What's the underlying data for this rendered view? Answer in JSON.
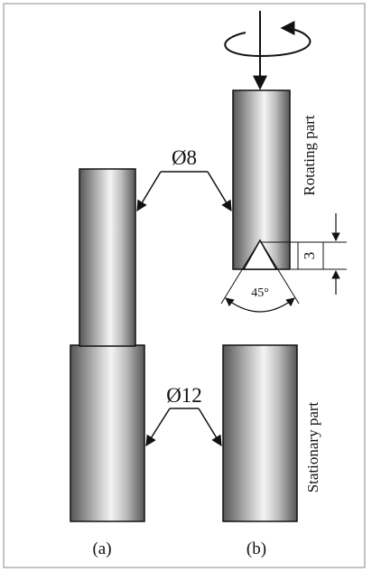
{
  "labels": {
    "dia_small": "Ø8",
    "dia_large": "Ø12",
    "rotating": "Rotating part",
    "stationary": "Stationary part",
    "tip_depth": "3",
    "tip_angle": "45°",
    "sub_a": "(a)",
    "sub_b": "(b)"
  },
  "colors": {
    "cylinder_dark": "#5a5a5a",
    "cylinder_light": "#f2f2f2",
    "stroke": "#111111",
    "frame": "#888888"
  }
}
